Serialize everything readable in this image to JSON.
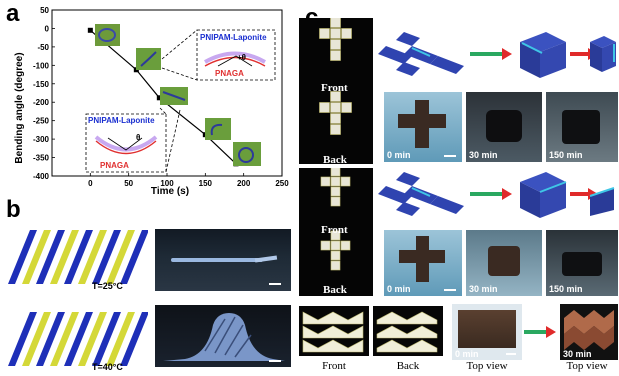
{
  "panels": {
    "a": "a",
    "b": "b",
    "c": "c"
  },
  "chart_data": {
    "type": "line",
    "xlabel": "Time (s)",
    "ylabel": "Bending angle (degree)",
    "xlim": [
      -50,
      250
    ],
    "ylim": [
      -400,
      50
    ],
    "x_ticks": [
      0,
      50,
      100,
      150,
      200,
      250
    ],
    "y_ticks": [
      50,
      0,
      -50,
      -100,
      -150,
      -200,
      -250,
      -300,
      -350,
      -400
    ],
    "series": [
      {
        "x": [
          0,
          60,
          90,
          150,
          190
        ],
        "y": [
          -5,
          -112,
          -188,
          -288,
          -367
        ]
      }
    ],
    "annotations": {
      "upper": {
        "label": "PNIPAM-Laponite",
        "sub": "PNAGA",
        "angle": "+θ"
      },
      "lower": {
        "label": "PNIPAM-Laponite",
        "sub": "PNAGA",
        "angle": "θ"
      }
    }
  },
  "panel_b": {
    "temp1": "T=25°C",
    "temp2": "T=40°C"
  },
  "panel_c": {
    "front": "Front",
    "back": "Back",
    "front_caption": "Front",
    "back_caption": "Back",
    "top_view": "Top view",
    "times_row1": [
      "0 min",
      "30 min",
      "150 min"
    ],
    "times_row2": [
      "0 min",
      "30 min",
      "150 min"
    ],
    "time_row3": [
      "0 min",
      "30 min"
    ]
  },
  "colors": {
    "blue": "#1e2fb8",
    "yellow": "#d4d838",
    "cube": "#2a3fa8",
    "accent": "#2aa4d4"
  }
}
